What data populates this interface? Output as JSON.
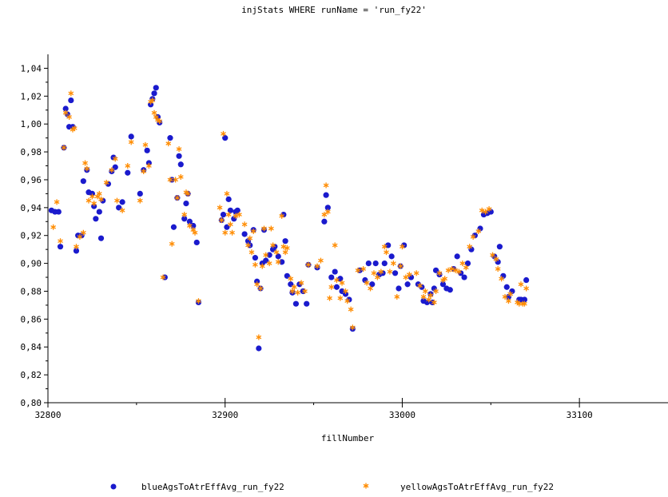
{
  "chart_data": {
    "type": "scatter",
    "title": "injStats WHERE runName = 'run_fy22'",
    "xlabel": "fillNumber",
    "ylabel": "",
    "xlim": [
      32800,
      33150
    ],
    "ylim": [
      0.8,
      1.05
    ],
    "x_ticks": [
      "32800",
      "32900",
      "33000",
      "33100"
    ],
    "y_ticks": [
      "0,80",
      "0,82",
      "0,84",
      "0,86",
      "0,88",
      "0,90",
      "0,92",
      "0,94",
      "0,96",
      "0,98",
      "1,00",
      "1,02",
      "1,04"
    ],
    "grid": false,
    "legend_position": "bottom",
    "series": [
      {
        "name": "blueAgsToAtrEffAvg_run_fy22",
        "color": "#1a1acd",
        "marker": "circle",
        "points": [
          [
            32802,
            0.938
          ],
          [
            32804,
            0.937
          ],
          [
            32806,
            0.937
          ],
          [
            32807,
            0.912
          ],
          [
            32809,
            0.983
          ],
          [
            32810,
            1.011
          ],
          [
            32811,
            1.007
          ],
          [
            32812,
            0.998
          ],
          [
            32813,
            1.017
          ],
          [
            32814,
            0.998
          ],
          [
            32816,
            0.909
          ],
          [
            32817,
            0.92
          ],
          [
            32819,
            0.92
          ],
          [
            32820,
            0.959
          ],
          [
            32822,
            0.967
          ],
          [
            32823,
            0.951
          ],
          [
            32825,
            0.95
          ],
          [
            32826,
            0.941
          ],
          [
            32827,
            0.932
          ],
          [
            32829,
            0.937
          ],
          [
            32830,
            0.918
          ],
          [
            32831,
            0.945
          ],
          [
            32834,
            0.957
          ],
          [
            32836,
            0.966
          ],
          [
            32837,
            0.976
          ],
          [
            32838,
            0.969
          ],
          [
            32840,
            0.94
          ],
          [
            32842,
            0.944
          ],
          [
            32845,
            0.965
          ],
          [
            32847,
            0.991
          ],
          [
            32852,
            0.95
          ],
          [
            32854,
            0.967
          ],
          [
            32856,
            0.981
          ],
          [
            32857,
            0.972
          ],
          [
            32858,
            1.014
          ],
          [
            32859,
            1.018
          ],
          [
            32860,
            1.022
          ],
          [
            32861,
            1.026
          ],
          [
            32862,
            1.005
          ],
          [
            32863,
            1.001
          ],
          [
            32866,
            0.89
          ],
          [
            32869,
            0.99
          ],
          [
            32870,
            0.96
          ],
          [
            32871,
            0.926
          ],
          [
            32873,
            0.947
          ],
          [
            32874,
            0.977
          ],
          [
            32875,
            0.971
          ],
          [
            32877,
            0.932
          ],
          [
            32878,
            0.943
          ],
          [
            32879,
            0.95
          ],
          [
            32880,
            0.93
          ],
          [
            32882,
            0.927
          ],
          [
            32884,
            0.915
          ],
          [
            32885,
            0.872
          ],
          [
            32898,
            0.931
          ],
          [
            32899,
            0.935
          ],
          [
            32900,
            0.99
          ],
          [
            32901,
            0.926
          ],
          [
            32902,
            0.946
          ],
          [
            32903,
            0.938
          ],
          [
            32905,
            0.932
          ],
          [
            32906,
            0.937
          ],
          [
            32907,
            0.938
          ],
          [
            32911,
            0.921
          ],
          [
            32913,
            0.916
          ],
          [
            32914,
            0.913
          ],
          [
            32916,
            0.924
          ],
          [
            32917,
            0.904
          ],
          [
            32918,
            0.887
          ],
          [
            32919,
            0.839
          ],
          [
            32920,
            0.882
          ],
          [
            32921,
            0.9
          ],
          [
            32922,
            0.924
          ],
          [
            32923,
            0.902
          ],
          [
            32925,
            0.906
          ],
          [
            32927,
            0.91
          ],
          [
            32928,
            0.912
          ],
          [
            32930,
            0.905
          ],
          [
            32932,
            0.901
          ],
          [
            32933,
            0.935
          ],
          [
            32934,
            0.916
          ],
          [
            32935,
            0.891
          ],
          [
            32937,
            0.885
          ],
          [
            32938,
            0.879
          ],
          [
            32940,
            0.871
          ],
          [
            32942,
            0.885
          ],
          [
            32944,
            0.88
          ],
          [
            32946,
            0.871
          ],
          [
            32947,
            0.899
          ],
          [
            32952,
            0.897
          ],
          [
            32956,
            0.93
          ],
          [
            32957,
            0.949
          ],
          [
            32958,
            0.94
          ],
          [
            32960,
            0.89
          ],
          [
            32962,
            0.894
          ],
          [
            32963,
            0.883
          ],
          [
            32965,
            0.889
          ],
          [
            32966,
            0.88
          ],
          [
            32968,
            0.878
          ],
          [
            32970,
            0.874
          ],
          [
            32972,
            0.853
          ],
          [
            32976,
            0.895
          ],
          [
            32979,
            0.888
          ],
          [
            32981,
            0.9
          ],
          [
            32983,
            0.885
          ],
          [
            32985,
            0.9
          ],
          [
            32987,
            0.892
          ],
          [
            32989,
            0.893
          ],
          [
            32990,
            0.9
          ],
          [
            32992,
            0.913
          ],
          [
            32994,
            0.905
          ],
          [
            32996,
            0.893
          ],
          [
            32998,
            0.882
          ],
          [
            32999,
            0.898
          ],
          [
            33001,
            0.913
          ],
          [
            33003,
            0.885
          ],
          [
            33005,
            0.89
          ],
          [
            33009,
            0.885
          ],
          [
            33011,
            0.883
          ],
          [
            33012,
            0.873
          ],
          [
            33014,
            0.872
          ],
          [
            33016,
            0.878
          ],
          [
            33017,
            0.872
          ],
          [
            33018,
            0.882
          ],
          [
            33019,
            0.895
          ],
          [
            33021,
            0.892
          ],
          [
            33023,
            0.885
          ],
          [
            33025,
            0.882
          ],
          [
            33027,
            0.881
          ],
          [
            33029,
            0.896
          ],
          [
            33031,
            0.905
          ],
          [
            33033,
            0.893
          ],
          [
            33035,
            0.89
          ],
          [
            33037,
            0.9
          ],
          [
            33039,
            0.91
          ],
          [
            33041,
            0.92
          ],
          [
            33044,
            0.925
          ],
          [
            33046,
            0.935
          ],
          [
            33048,
            0.936
          ],
          [
            33050,
            0.937
          ],
          [
            33052,
            0.905
          ],
          [
            33054,
            0.901
          ],
          [
            33055,
            0.912
          ],
          [
            33057,
            0.891
          ],
          [
            33059,
            0.883
          ],
          [
            33060,
            0.876
          ],
          [
            33062,
            0.88
          ],
          [
            33066,
            0.874
          ],
          [
            33067,
            0.874
          ],
          [
            33069,
            0.874
          ],
          [
            33070,
            0.888
          ]
        ]
      },
      {
        "name": "yellowAgsToAtrEffAvg_run_fy22",
        "color": "#ff8c00",
        "marker": "asterisk",
        "points": [
          [
            32803,
            0.926
          ],
          [
            32805,
            0.944
          ],
          [
            32807,
            0.916
          ],
          [
            32809,
            0.983
          ],
          [
            32810,
            1.008
          ],
          [
            32812,
            1.005
          ],
          [
            32813,
            1.022
          ],
          [
            32814,
            0.996
          ],
          [
            32815,
            0.997
          ],
          [
            32816,
            0.912
          ],
          [
            32818,
            0.919
          ],
          [
            32820,
            0.922
          ],
          [
            32821,
            0.972
          ],
          [
            32822,
            0.968
          ],
          [
            32823,
            0.945
          ],
          [
            32825,
            0.948
          ],
          [
            32826,
            0.943
          ],
          [
            32828,
            0.948
          ],
          [
            32829,
            0.95
          ],
          [
            32830,
            0.946
          ],
          [
            32833,
            0.958
          ],
          [
            32836,
            0.967
          ],
          [
            32838,
            0.975
          ],
          [
            32839,
            0.945
          ],
          [
            32842,
            0.938
          ],
          [
            32845,
            0.97
          ],
          [
            32847,
            0.987
          ],
          [
            32852,
            0.945
          ],
          [
            32854,
            0.966
          ],
          [
            32855,
            0.985
          ],
          [
            32857,
            0.97
          ],
          [
            32858,
            1.016
          ],
          [
            32859,
            1.017
          ],
          [
            32860,
            1.008
          ],
          [
            32861,
            1.005
          ],
          [
            32862,
            1.003
          ],
          [
            32863,
            1.002
          ],
          [
            32865,
            0.89
          ],
          [
            32868,
            0.986
          ],
          [
            32869,
            0.96
          ],
          [
            32870,
            0.914
          ],
          [
            32872,
            0.96
          ],
          [
            32873,
            0.947
          ],
          [
            32874,
            0.982
          ],
          [
            32875,
            0.962
          ],
          [
            32877,
            0.935
          ],
          [
            32878,
            0.951
          ],
          [
            32879,
            0.95
          ],
          [
            32880,
            0.927
          ],
          [
            32882,
            0.924
          ],
          [
            32883,
            0.922
          ],
          [
            32885,
            0.873
          ],
          [
            32897,
            0.94
          ],
          [
            32898,
            0.931
          ],
          [
            32899,
            0.993
          ],
          [
            32900,
            0.922
          ],
          [
            32901,
            0.95
          ],
          [
            32902,
            0.935
          ],
          [
            32903,
            0.928
          ],
          [
            32904,
            0.922
          ],
          [
            32906,
            0.934
          ],
          [
            32908,
            0.935
          ],
          [
            32911,
            0.928
          ],
          [
            32913,
            0.913
          ],
          [
            32914,
            0.918
          ],
          [
            32915,
            0.908
          ],
          [
            32916,
            0.923
          ],
          [
            32917,
            0.899
          ],
          [
            32918,
            0.885
          ],
          [
            32919,
            0.847
          ],
          [
            32920,
            0.882
          ],
          [
            32921,
            0.898
          ],
          [
            32922,
            0.925
          ],
          [
            32923,
            0.906
          ],
          [
            32925,
            0.9
          ],
          [
            32926,
            0.925
          ],
          [
            32927,
            0.913
          ],
          [
            32929,
            0.908
          ],
          [
            32930,
            0.901
          ],
          [
            32932,
            0.934
          ],
          [
            32933,
            0.912
          ],
          [
            32934,
            0.908
          ],
          [
            32935,
            0.911
          ],
          [
            32937,
            0.889
          ],
          [
            32938,
            0.88
          ],
          [
            32939,
            0.883
          ],
          [
            32941,
            0.879
          ],
          [
            32943,
            0.886
          ],
          [
            32945,
            0.88
          ],
          [
            32947,
            0.899
          ],
          [
            32952,
            0.898
          ],
          [
            32954,
            0.902
          ],
          [
            32956,
            0.935
          ],
          [
            32957,
            0.956
          ],
          [
            32958,
            0.937
          ],
          [
            32959,
            0.875
          ],
          [
            32960,
            0.883
          ],
          [
            32962,
            0.913
          ],
          [
            32963,
            0.888
          ],
          [
            32965,
            0.875
          ],
          [
            32966,
            0.886
          ],
          [
            32968,
            0.88
          ],
          [
            32969,
            0.873
          ],
          [
            32971,
            0.867
          ],
          [
            32972,
            0.854
          ],
          [
            32975,
            0.895
          ],
          [
            32978,
            0.896
          ],
          [
            32980,
            0.886
          ],
          [
            32982,
            0.882
          ],
          [
            32984,
            0.893
          ],
          [
            32986,
            0.89
          ],
          [
            32988,
            0.894
          ],
          [
            32990,
            0.912
          ],
          [
            32991,
            0.908
          ],
          [
            32993,
            0.894
          ],
          [
            32995,
            0.9
          ],
          [
            32997,
            0.876
          ],
          [
            32999,
            0.898
          ],
          [
            33000,
            0.912
          ],
          [
            33002,
            0.89
          ],
          [
            33004,
            0.892
          ],
          [
            33008,
            0.893
          ],
          [
            33010,
            0.884
          ],
          [
            33012,
            0.876
          ],
          [
            33013,
            0.88
          ],
          [
            33015,
            0.874
          ],
          [
            33016,
            0.877
          ],
          [
            33018,
            0.872
          ],
          [
            33019,
            0.88
          ],
          [
            33021,
            0.893
          ],
          [
            33023,
            0.888
          ],
          [
            33024,
            0.889
          ],
          [
            33026,
            0.895
          ],
          [
            33028,
            0.896
          ],
          [
            33030,
            0.895
          ],
          [
            33032,
            0.894
          ],
          [
            33034,
            0.9
          ],
          [
            33036,
            0.897
          ],
          [
            33038,
            0.912
          ],
          [
            33040,
            0.919
          ],
          [
            33043,
            0.923
          ],
          [
            33045,
            0.938
          ],
          [
            33047,
            0.937
          ],
          [
            33049,
            0.939
          ],
          [
            33051,
            0.906
          ],
          [
            33053,
            0.903
          ],
          [
            33054,
            0.896
          ],
          [
            33056,
            0.889
          ],
          [
            33058,
            0.876
          ],
          [
            33060,
            0.873
          ],
          [
            33061,
            0.878
          ],
          [
            33065,
            0.872
          ],
          [
            33066,
            0.871
          ],
          [
            33067,
            0.885
          ],
          [
            33068,
            0.871
          ],
          [
            33069,
            0.871
          ],
          [
            33070,
            0.882
          ]
        ]
      }
    ]
  }
}
